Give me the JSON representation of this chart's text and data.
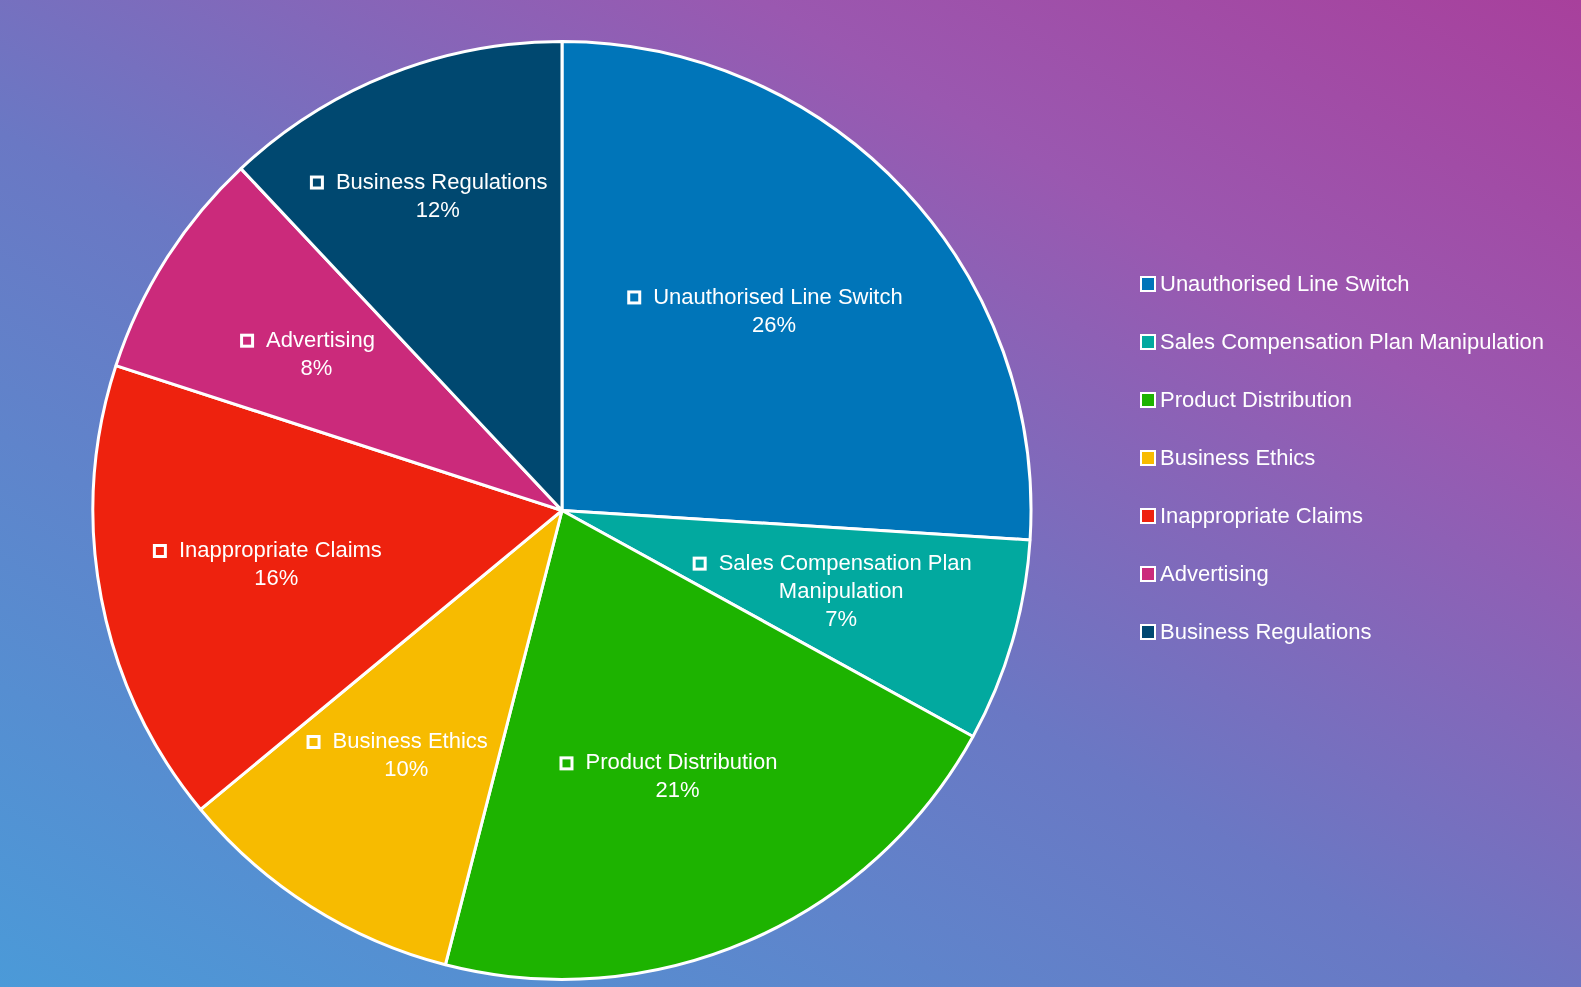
{
  "chart_data": {
    "type": "pie",
    "categories": [
      "Unauthorised Line Switch",
      "Sales Compensation Plan Manipulation",
      "Product Distribution",
      "Business Ethics",
      "Inappropriate Claims",
      "Advertising",
      "Business Regulations"
    ],
    "values": [
      26,
      7,
      21,
      10,
      16,
      8,
      12
    ],
    "value_labels": [
      "26%",
      "7%",
      "21%",
      "10%",
      "16%",
      "8%",
      "12%"
    ],
    "colors": [
      "#0075b9",
      "#02a99f",
      "#1db300",
      "#f7bb00",
      "#ee220e",
      "#cb2a7b",
      "#004870"
    ],
    "legend": "right"
  }
}
